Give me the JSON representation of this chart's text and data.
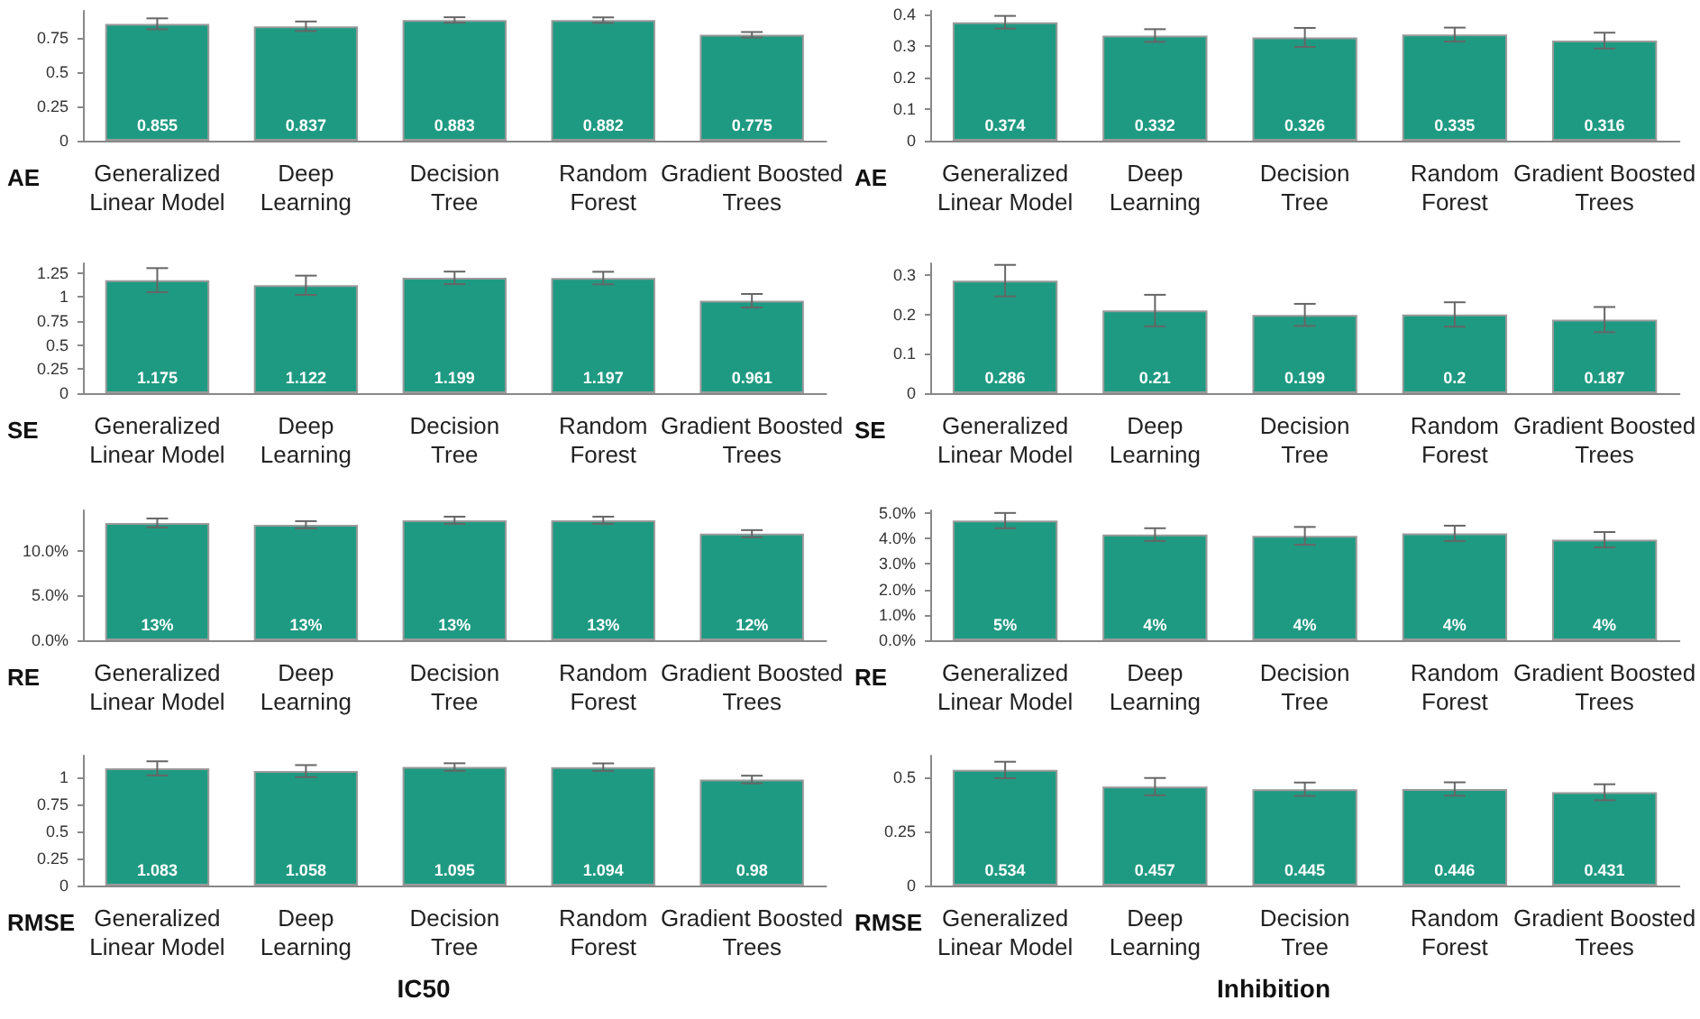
{
  "chart_data": [
    {
      "type": "bar",
      "ylabel": "AE",
      "categories": [
        "Generalized\nLinear Model",
        "Deep\nLearning",
        "Decision\nTree",
        "Random\nForest",
        "Gradient Boosted\nTrees"
      ],
      "color": "#1f9a82",
      "values": [
        0.855,
        0.837,
        0.883,
        0.882,
        0.775
      ],
      "errors": [
        0.04,
        0.035,
        0.02,
        0.02,
        0.02
      ],
      "data_labels": true,
      "ylim": [
        0,
        0.95
      ],
      "yticks": [
        0,
        0.25,
        0.5,
        0.75
      ],
      "grid": false
    },
    {
      "type": "bar",
      "ylabel": "AE",
      "categories": [
        "Generalized\nLinear Model",
        "Deep\nLearning",
        "Decision\nTree",
        "Random\nForest",
        "Gradient Boosted\nTrees"
      ],
      "color": "#1f9a82",
      "values": [
        0.374,
        0.332,
        0.326,
        0.335,
        0.316
      ],
      "errors": [
        0.02,
        0.02,
        0.03,
        0.022,
        0.025
      ],
      "data_labels": true,
      "ylim": [
        0,
        0.41
      ],
      "yticks": [
        0,
        0.1,
        0.2,
        0.3,
        0.4
      ],
      "grid": false
    },
    {
      "type": "bar",
      "ylabel": "SE",
      "categories": [
        "Generalized\nLinear Model",
        "Deep\nLearning",
        "Decision\nTree",
        "Random\nForest",
        "Gradient Boosted\nTrees"
      ],
      "color": "#1f9a82",
      "values": [
        1.175,
        1.122,
        1.199,
        1.197,
        0.961
      ],
      "errors": [
        0.125,
        0.1,
        0.065,
        0.065,
        0.07
      ],
      "data_labels": true,
      "ylim": [
        0,
        1.35
      ],
      "yticks": [
        0,
        0.25,
        0.5,
        0.75,
        1,
        1.25
      ],
      "grid": false
    },
    {
      "type": "bar",
      "ylabel": "SE",
      "categories": [
        "Generalized\nLinear Model",
        "Deep\nLearning",
        "Decision\nTree",
        "Random\nForest",
        "Gradient Boosted\nTrees"
      ],
      "color": "#1f9a82",
      "values": [
        0.286,
        0.21,
        0.199,
        0.2,
        0.187
      ],
      "errors": [
        0.04,
        0.04,
        0.028,
        0.031,
        0.032
      ],
      "data_labels": true,
      "ylim": [
        0,
        0.33
      ],
      "yticks": [
        0,
        0.1,
        0.2,
        0.3
      ],
      "grid": false
    },
    {
      "type": "bar",
      "ylabel": "RE",
      "categories": [
        "Generalized\nLinear Model",
        "Deep\nLearning",
        "Decision\nTree",
        "Random\nForest",
        "Gradient Boosted\nTrees"
      ],
      "color": "#1f9a82",
      "values": [
        13.1,
        12.9,
        13.4,
        13.4,
        11.9
      ],
      "value_labels": [
        "13%",
        "13%",
        "13%",
        "13%",
        "12%"
      ],
      "errors": [
        0.5,
        0.4,
        0.4,
        0.4,
        0.4
      ],
      "ylim": [
        0,
        14.5
      ],
      "yticks": [
        {
          "value": 0,
          "label": "0.0%"
        },
        {
          "value": 5,
          "label": "5.0%"
        },
        {
          "value": 10,
          "label": "10.0%"
        }
      ],
      "grid": false
    },
    {
      "type": "bar",
      "ylabel": "RE",
      "categories": [
        "Generalized\nLinear Model",
        "Deep\nLearning",
        "Decision\nTree",
        "Random\nForest",
        "Gradient Boosted\nTrees"
      ],
      "color": "#1f9a82",
      "values": [
        4.7,
        4.15,
        4.1,
        4.2,
        3.95
      ],
      "value_labels": [
        "5%",
        "4%",
        "4%",
        "4%",
        "4%"
      ],
      "errors": [
        0.3,
        0.25,
        0.35,
        0.3,
        0.3
      ],
      "ylim": [
        0,
        5.1
      ],
      "yticks": [
        {
          "value": 0,
          "label": "0.0%"
        },
        {
          "value": 1,
          "label": "1.0%"
        },
        {
          "value": 2,
          "label": "2.0%"
        },
        {
          "value": 3,
          "label": "3.0%"
        },
        {
          "value": 4,
          "label": "4.0%"
        },
        {
          "value": 5,
          "label": "5.0%"
        }
      ],
      "grid": false
    },
    {
      "type": "bar",
      "ylabel": "RMSE",
      "xlabel": "IC50",
      "categories": [
        "Generalized\nLinear Model",
        "Deep\nLearning",
        "Decision\nTree",
        "Random\nForest",
        "Gradient Boosted\nTrees"
      ],
      "color": "#1f9a82",
      "values": [
        1.083,
        1.058,
        1.095,
        1.094,
        0.98
      ],
      "errors": [
        0.065,
        0.055,
        0.035,
        0.035,
        0.035
      ],
      "data_labels": true,
      "ylim": [
        0,
        1.2
      ],
      "yticks": [
        0,
        0.25,
        0.5,
        0.75,
        1
      ],
      "grid": false
    },
    {
      "type": "bar",
      "ylabel": "RMSE",
      "xlabel": "Inhibition",
      "categories": [
        "Generalized\nLinear Model",
        "Deep\nLearning",
        "Decision\nTree",
        "Random\nForest",
        "Gradient Boosted\nTrees"
      ],
      "color": "#1f9a82",
      "values": [
        0.534,
        0.457,
        0.445,
        0.446,
        0.431
      ],
      "errors": [
        0.038,
        0.04,
        0.031,
        0.031,
        0.037
      ],
      "data_labels": true,
      "ylim": [
        0,
        0.6
      ],
      "yticks": [
        0,
        0.25,
        0.5
      ],
      "grid": false
    }
  ]
}
